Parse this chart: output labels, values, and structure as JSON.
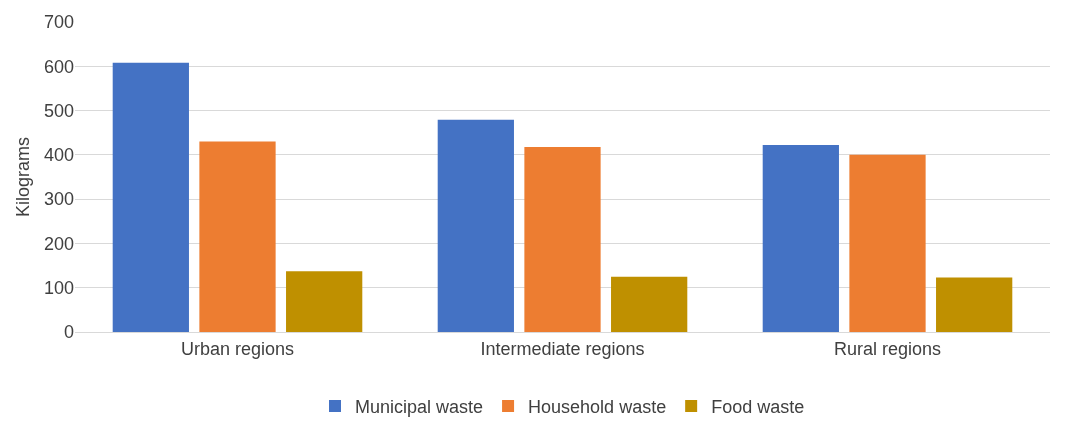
{
  "chart_data": {
    "type": "bar",
    "ylabel": "Kilograms",
    "categories": [
      "Urban regions",
      "Intermediate regions",
      "Rural regions"
    ],
    "series": [
      {
        "name": "Municipal waste",
        "color": "#4472c4",
        "values": [
          608,
          479,
          422
        ]
      },
      {
        "name": "Household waste",
        "color": "#ed7d31",
        "values": [
          430,
          418,
          400
        ]
      },
      {
        "name": "Food waste",
        "color": "#bf9000",
        "values": [
          137,
          125,
          123
        ]
      }
    ],
    "ylim": [
      0,
      700
    ],
    "yticks": [
      0,
      100,
      200,
      300,
      400,
      500,
      600,
      700
    ],
    "grid": "y",
    "legend": "bottom"
  }
}
